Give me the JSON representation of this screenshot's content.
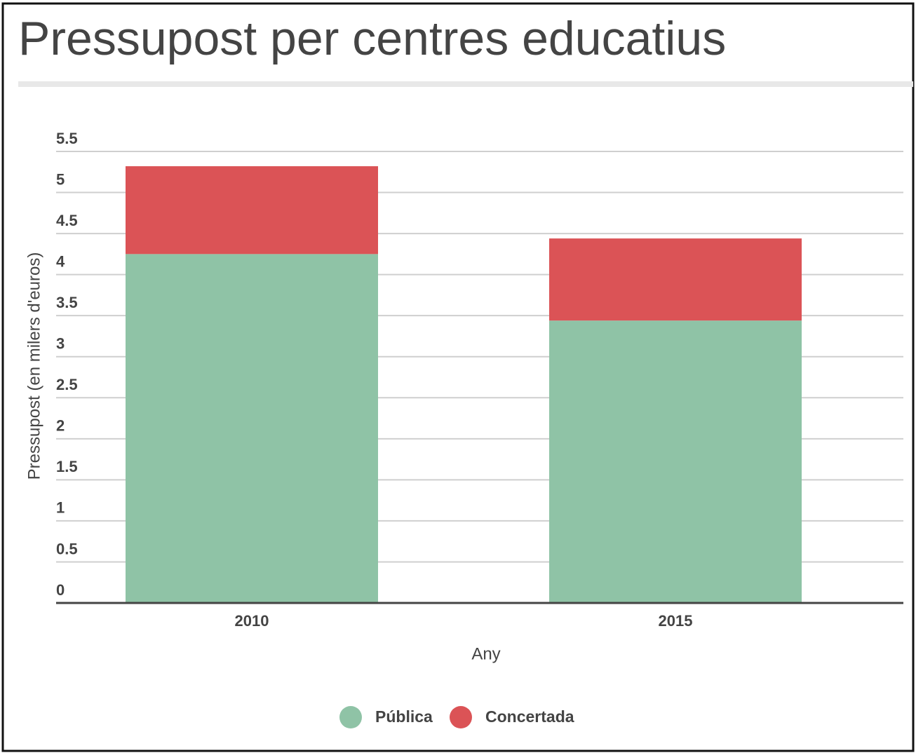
{
  "chart_data": {
    "type": "bar",
    "stacked": true,
    "title": "Pressupost per centres educatius",
    "categories": [
      "2010",
      "2015"
    ],
    "series": [
      {
        "name": "Pública",
        "color": "#8fc3a6",
        "values": [
          4.25,
          3.44
        ]
      },
      {
        "name": "Concertada",
        "color": "#db5356",
        "values": [
          1.07,
          1.0
        ]
      }
    ],
    "xlabel": "Any",
    "ylabel": "Pressupost (en milers d'euros)",
    "ylim": [
      0,
      5.5
    ],
    "yticks": [
      0,
      0.5,
      1,
      1.5,
      2,
      2.5,
      3,
      3.5,
      4,
      4.5,
      5,
      5.5
    ],
    "grid": true,
    "legend": "bottom"
  }
}
